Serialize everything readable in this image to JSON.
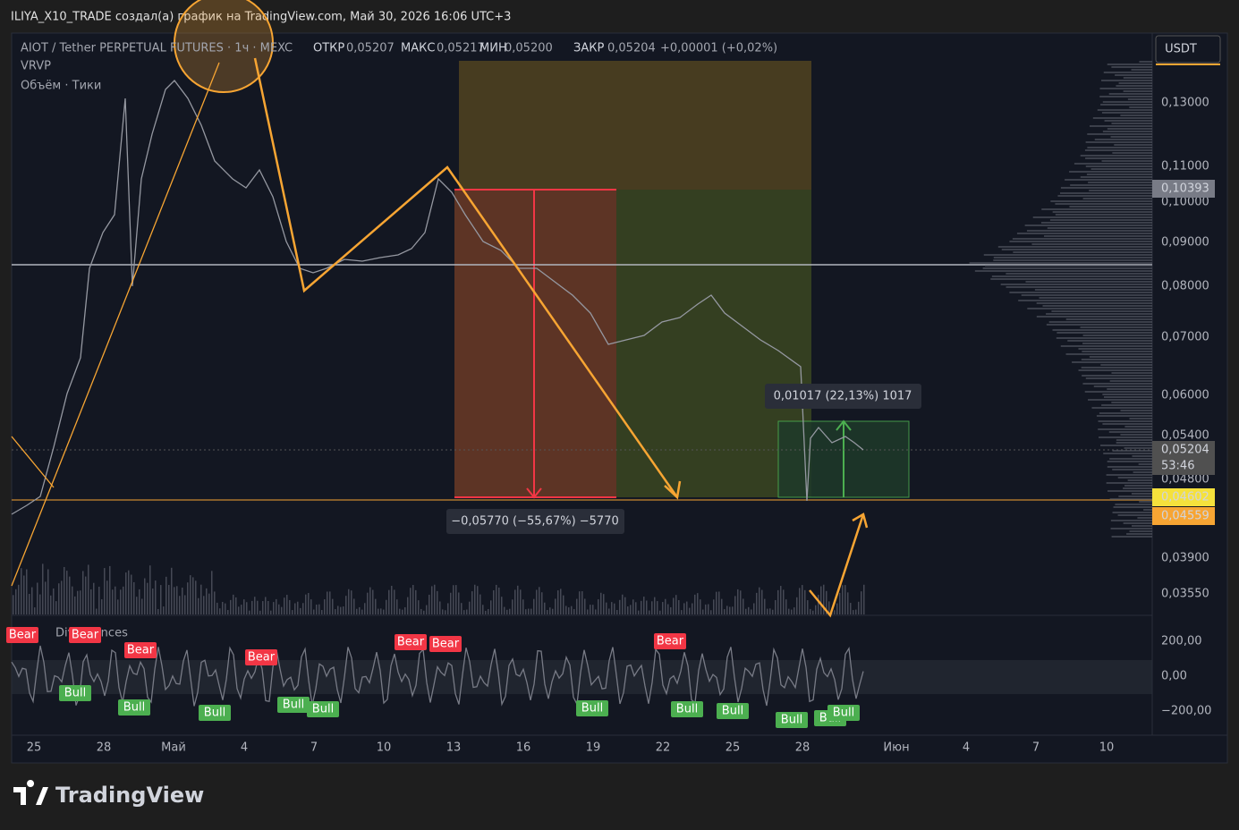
{
  "header": {
    "text": "ILIYA_X10_TRADE создал(а) график на TradingView.com, Май 30, 2026 16:06 UTC+3"
  },
  "legend": {
    "symbol": "AIOT / Tether PERPETUAL FUTURES · 1ч · MEXC",
    "ohlc": [
      {
        "label": "ОТКР",
        "value": "0,05207"
      },
      {
        "label": "МАКС",
        "value": "0,05217"
      },
      {
        "label": "МИН",
        "value": "0,05200"
      },
      {
        "label": "ЗАКР",
        "value": "0,05204"
      }
    ],
    "change": "+0,00001 (+0,02%)",
    "indicators": [
      "VRVP",
      "Объём · Тики"
    ]
  },
  "currency_button": "USDT",
  "price_axis": [
    "0,13000",
    "0,11000",
    "0,10000",
    "0,09000",
    "0,08000",
    "0,07000",
    "0,06000",
    "0,05400",
    "0,04800",
    "0,03900",
    "0,03550"
  ],
  "badges": {
    "level_top": "0,10393",
    "last_price": "0,05204",
    "countdown": "53:46",
    "level_a": "0,04602",
    "level_b": "0,04559"
  },
  "measures": {
    "long": "0,01017 (22,13%) 1017",
    "short": "−0,05770 (−55,67%) −5770"
  },
  "oscillator": {
    "title": "Divergences",
    "axis": [
      "200,00",
      "0,00",
      "−200,00"
    ],
    "bear_label": "Bear",
    "bull_label": "Bull"
  },
  "time_axis": [
    "25",
    "28",
    "Май",
    "4",
    "7",
    "10",
    "13",
    "16",
    "19",
    "22",
    "25",
    "28",
    "Июн",
    "4",
    "7",
    "10"
  ],
  "footer": {
    "brand": "TradingView"
  }
}
